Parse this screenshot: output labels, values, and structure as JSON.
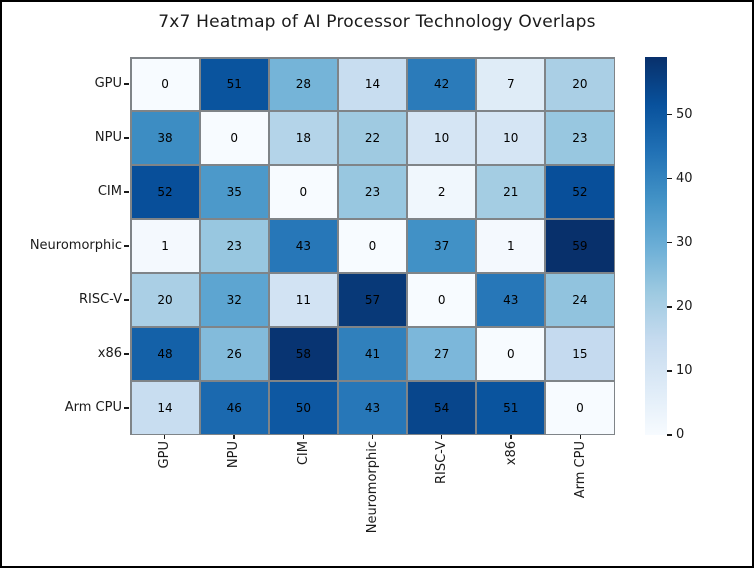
{
  "title": "7x7 Heatmap of AI Processor Technology Overlaps",
  "chart_data": {
    "type": "heatmap",
    "title": "7x7 Heatmap of AI Processor Technology Overlaps",
    "row_labels": [
      "GPU",
      "NPU",
      "CIM",
      "Neuromorphic",
      "RISC-V",
      "x86",
      "Arm CPU"
    ],
    "col_labels": [
      "GPU",
      "NPU",
      "CIM",
      "Neuromorphic",
      "RISC-V",
      "x86",
      "Arm CPU"
    ],
    "values": [
      [
        0,
        51,
        28,
        14,
        42,
        7,
        20
      ],
      [
        38,
        0,
        18,
        22,
        10,
        10,
        23
      ],
      [
        52,
        35,
        0,
        23,
        2,
        21,
        52
      ],
      [
        1,
        23,
        43,
        0,
        37,
        1,
        59
      ],
      [
        20,
        32,
        11,
        57,
        0,
        43,
        24
      ],
      [
        48,
        26,
        58,
        41,
        27,
        0,
        15
      ],
      [
        14,
        46,
        50,
        43,
        54,
        51,
        0
      ]
    ],
    "vmin": 0,
    "vmax": 59,
    "colormap": "Blues",
    "colormap_anchors": [
      {
        "t": 0.0,
        "color": "#f7fbff"
      },
      {
        "t": 0.125,
        "color": "#deebf7"
      },
      {
        "t": 0.25,
        "color": "#c6dbef"
      },
      {
        "t": 0.375,
        "color": "#9ecae1"
      },
      {
        "t": 0.5,
        "color": "#6baed6"
      },
      {
        "t": 0.625,
        "color": "#4292c6"
      },
      {
        "t": 0.75,
        "color": "#2171b5"
      },
      {
        "t": 0.875,
        "color": "#08519c"
      },
      {
        "t": 1.0,
        "color": "#08306b"
      }
    ],
    "colorbar_ticks": [
      0,
      10,
      20,
      30,
      40,
      50
    ],
    "annotation_color": "#000000",
    "grid_line_color": "#7f8488",
    "legend_position": "right",
    "grid": true
  }
}
